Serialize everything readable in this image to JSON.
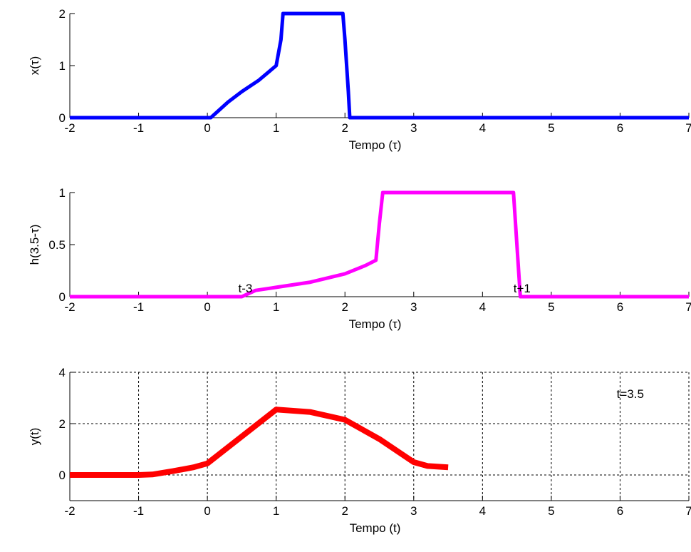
{
  "chart_data": [
    {
      "type": "line",
      "xlabel": "Tempo (τ)",
      "ylabel": "x(τ)",
      "xlim": [
        -2,
        7
      ],
      "ylim": [
        0,
        2
      ],
      "xticks": [
        -2,
        -1,
        0,
        1,
        2,
        3,
        4,
        5,
        6,
        7
      ],
      "yticks": [
        0,
        1,
        2
      ],
      "grid": false,
      "series": [
        {
          "color": "#0000ff",
          "x": [
            -2,
            0,
            0.05,
            0.3,
            0.5,
            0.75,
            1.0,
            1.07,
            1.1,
            1.5,
            1.97,
            2.0,
            2.05,
            2.07,
            7
          ],
          "y": [
            0,
            0,
            0,
            0.3,
            0.5,
            0.72,
            1.0,
            1.5,
            2.0,
            2.0,
            2.0,
            1.5,
            0.5,
            0,
            0
          ]
        }
      ],
      "annotations": []
    },
    {
      "type": "line",
      "xlabel": "Tempo (τ)",
      "ylabel": "h(3.5-τ)",
      "xlim": [
        -2,
        7
      ],
      "ylim": [
        0,
        1
      ],
      "xticks": [
        -2,
        -1,
        0,
        1,
        2,
        3,
        4,
        5,
        6,
        7
      ],
      "yticks": [
        0,
        0.5,
        1
      ],
      "ytick_labels": [
        "0",
        "0.5",
        "1"
      ],
      "grid": false,
      "series": [
        {
          "color": "#ff00ff",
          "x": [
            -2,
            0.5,
            0.7,
            1.0,
            1.5,
            2.0,
            2.3,
            2.45,
            2.5,
            2.55,
            4.45,
            4.5,
            4.55,
            7
          ],
          "y": [
            0,
            0,
            0.06,
            0.09,
            0.14,
            0.22,
            0.3,
            0.35,
            0.7,
            1.0,
            1.0,
            0.5,
            0,
            0
          ]
        }
      ],
      "annotations": [
        {
          "text": "t-3",
          "x": 0.45,
          "y": 0.04
        },
        {
          "text": "t+1",
          "x": 4.45,
          "y": 0.04
        }
      ]
    },
    {
      "type": "line",
      "xlabel": "Tempo (t)",
      "ylabel": "y(t)",
      "xlim": [
        -2,
        7
      ],
      "ylim": [
        -1,
        4
      ],
      "xticks": [
        -2,
        -1,
        0,
        1,
        2,
        3,
        4,
        5,
        6,
        7
      ],
      "yticks": [
        0,
        2,
        4
      ],
      "grid": true,
      "series": [
        {
          "color": "#ff0000",
          "x": [
            -2,
            -1.0,
            -0.8,
            -0.5,
            -0.2,
            0.0,
            0.5,
            1.0,
            1.5,
            2.0,
            2.5,
            3.0,
            3.2,
            3.5
          ],
          "y": [
            0,
            0,
            0.02,
            0.15,
            0.3,
            0.45,
            1.5,
            2.55,
            2.45,
            2.15,
            1.4,
            0.5,
            0.35,
            0.3
          ]
        }
      ],
      "annotations": [
        {
          "text": "t=3.5",
          "x": 5.95,
          "y": 3.0
        }
      ]
    }
  ]
}
